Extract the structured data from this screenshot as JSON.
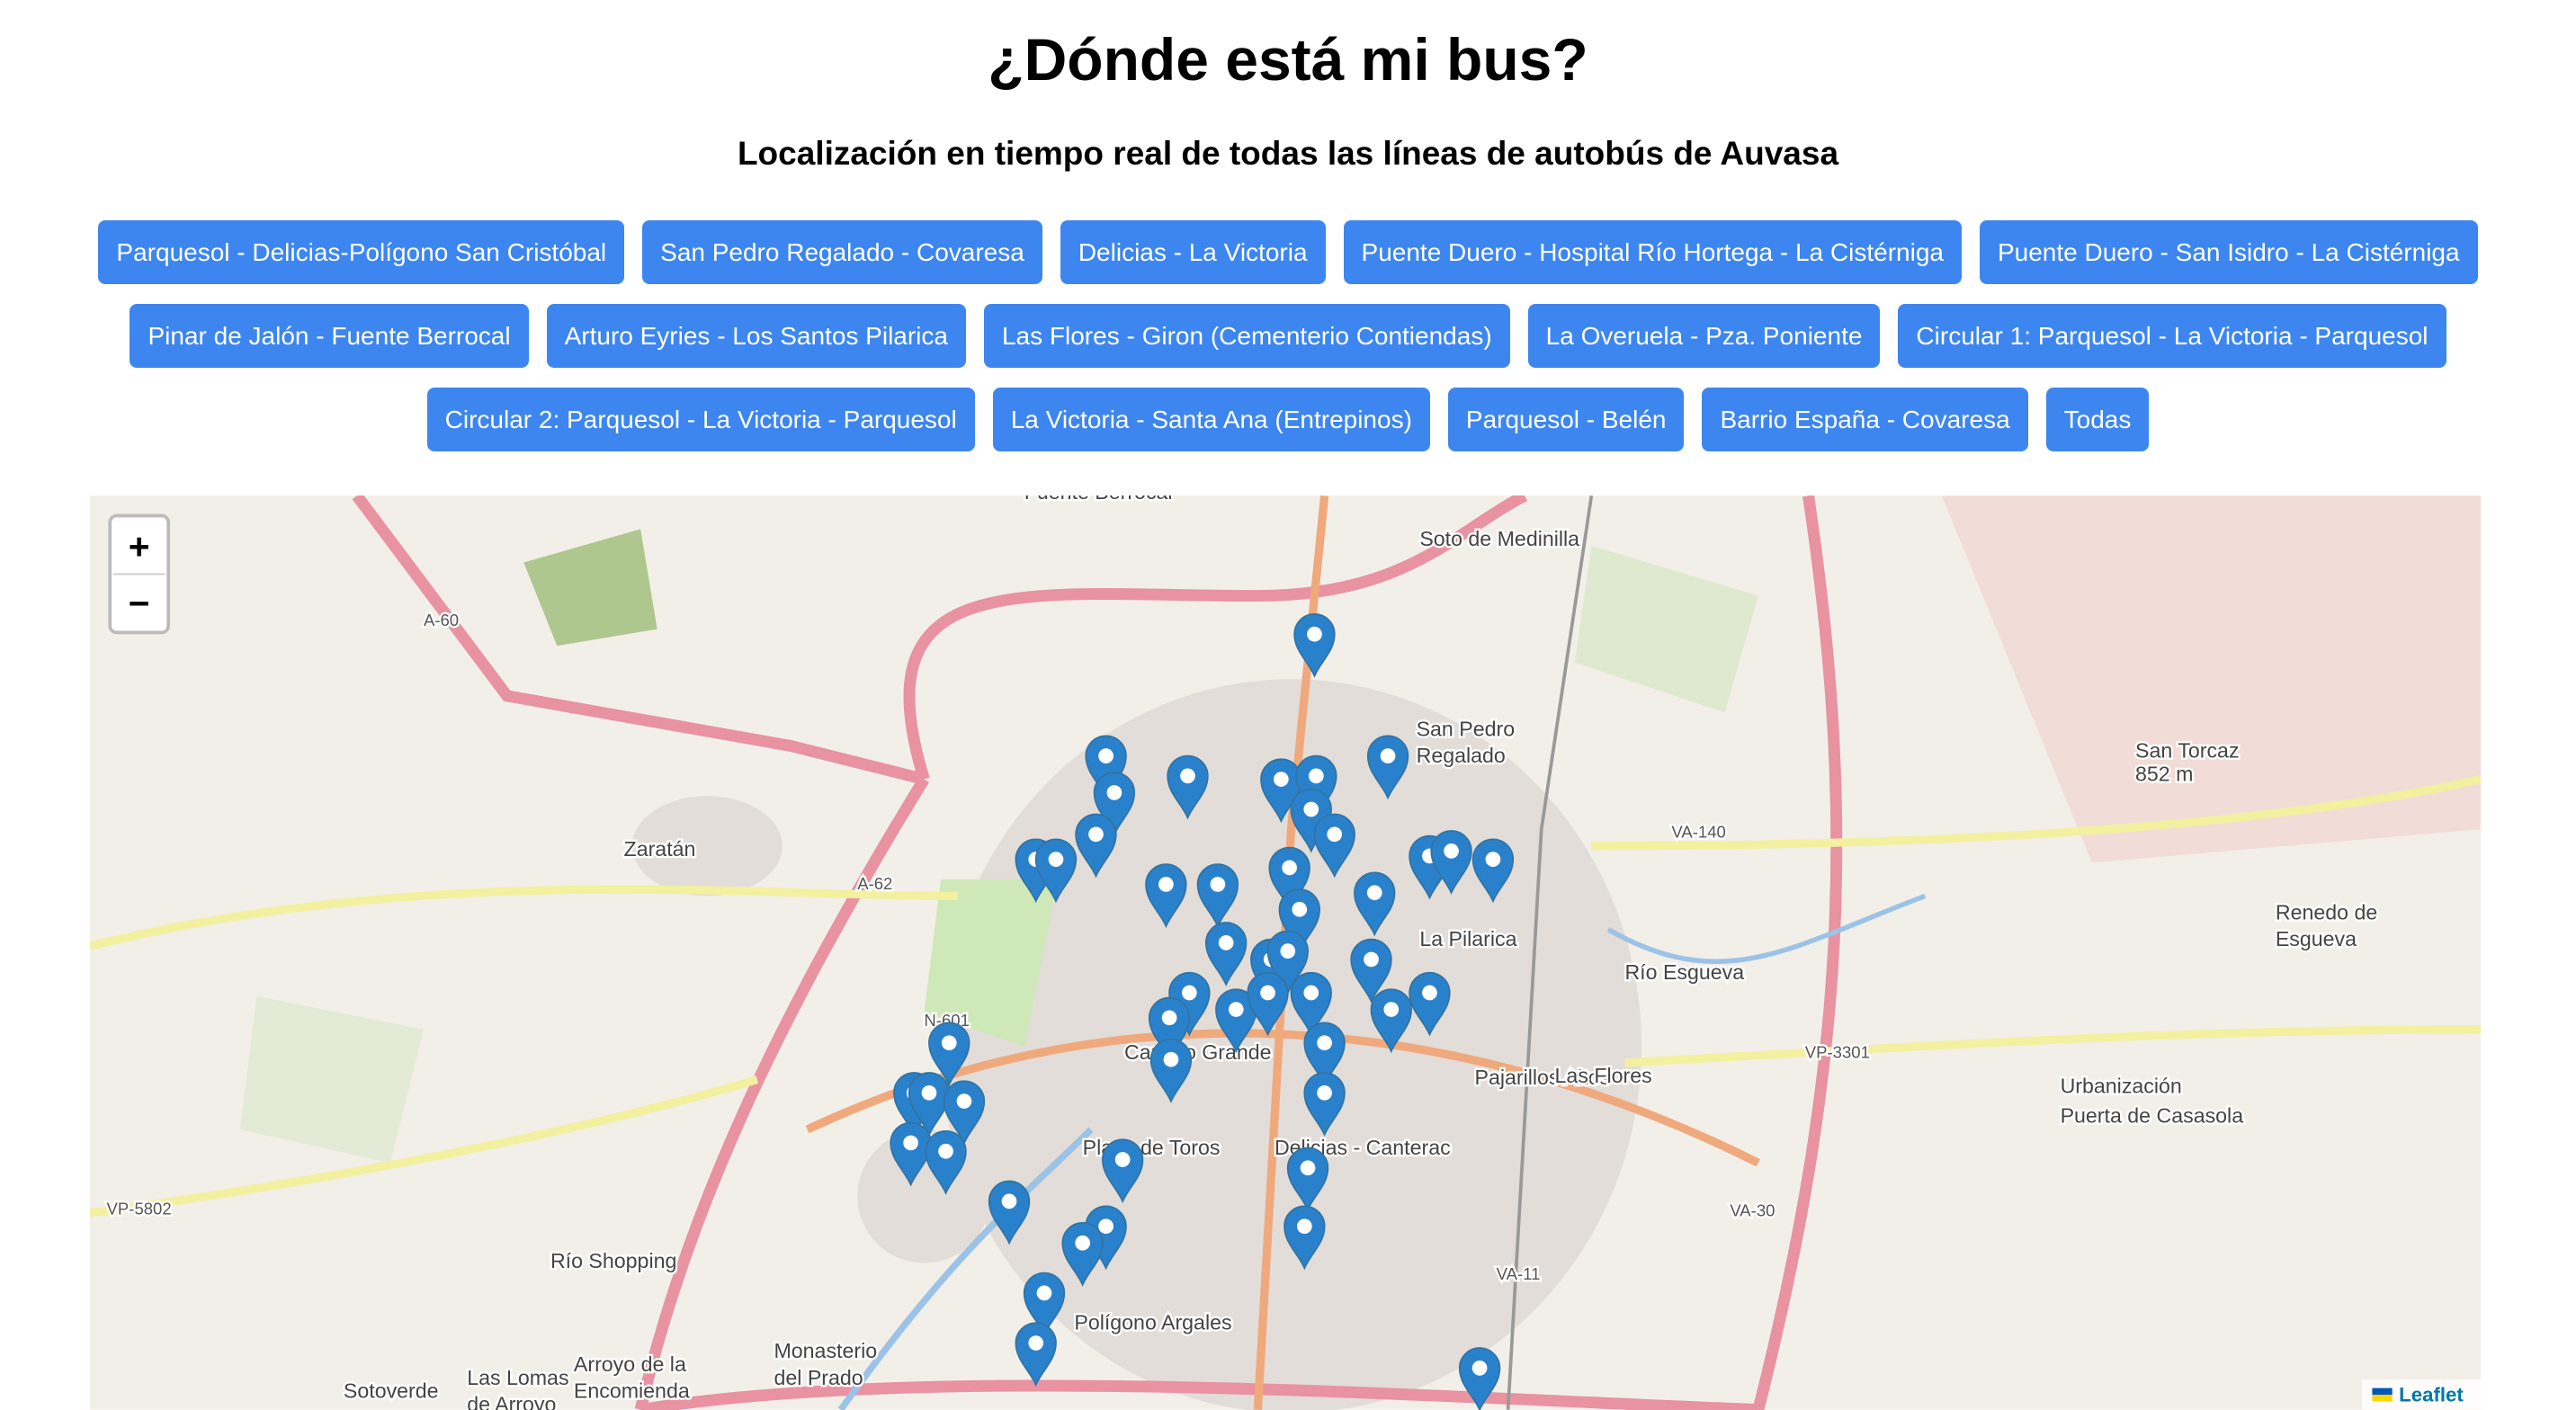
{
  "header": {
    "title": "¿Dónde está mi bus?",
    "subtitle": "Localización en tiempo real de todas las líneas de autobús de Auvasa"
  },
  "buttons": [
    [
      "Parquesol - Delicias-Polígono San Cristóbal",
      "San Pedro Regalado - Covaresa",
      "Delicias - La Victoria",
      "Puente Duero - Hospital Río Hortega - La Cistérniga",
      "Puente Duero - San Isidro - La Cistérniga"
    ],
    [
      "Pinar de Jalón - Fuente Berrocal",
      "Arturo Eyries - Los Santos Pilarica",
      "Las Flores - Giron (Cementerio Contiendas)",
      "La Overuela - Pza. Poniente",
      "Circular 1: Parquesol - La Victoria - Parquesol"
    ],
    [
      "Circular 2: Parquesol - La Victoria - Parquesol",
      "La Victoria - Santa Ana (Entrepinos)",
      "Parquesol - Belén",
      "Barrio España - Covaresa",
      "Todas"
    ]
  ],
  "map": {
    "zoom_in": "+",
    "zoom_out": "−",
    "attribution": "Leaflet",
    "labels": [
      "Fuente Berrocal",
      "Soto de Medinilla",
      "A-60",
      "San Pedro",
      "Regalado",
      "Zaratán",
      "A-62",
      "VA-140",
      "San Torcaz",
      "852 m",
      "Renedo de",
      "Esgueva",
      "La Pilarica",
      "Río Esgueva",
      "VP-3301",
      "Pajarillos Altos",
      "Las Flores",
      "Urbanización",
      "Puerta de Casasola",
      "N-601",
      "Plaza de Toros",
      "Delicias - Canterac",
      "Camino Grande",
      "VP-5802",
      "Río Shopping",
      "VA-30",
      "VA-11",
      "Polígono Argales",
      "Arroyo de la",
      "Encomienda",
      "Monasterio",
      "del Prado",
      "Sotoverde",
      "Las Lomas",
      "de Arroyo"
    ]
  }
}
